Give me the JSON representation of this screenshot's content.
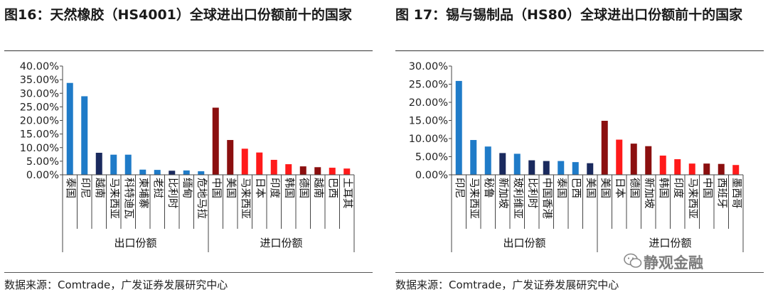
{
  "left": {
    "title": "图16：天然橡胶（HS4001）全球进出口份额前十的国家",
    "source": "数据来源：Comtrade，广发证券发展研究中心",
    "chart_data": {
      "type": "bar",
      "ylim": [
        0,
        40
      ],
      "yticks": [
        "0.00%",
        "5.00%",
        "10.00%",
        "15.00%",
        "20.00%",
        "25.00%",
        "30.00%",
        "35.00%",
        "40.00%"
      ],
      "groups": [
        {
          "label": "出口份额",
          "start": 0,
          "end": 10
        },
        {
          "label": "进口份额",
          "start": 10,
          "end": 20
        }
      ],
      "categories": [
        "泰国",
        "印尼",
        "越南",
        "马来西亚",
        "科特迪瓦",
        "柬埔寨",
        "老挝",
        "比利时",
        "缅甸",
        "危地马拉",
        "中国",
        "美国",
        "马来西亚",
        "日本",
        "印度",
        "韩国",
        "德国",
        "越南",
        "巴西",
        "土耳其"
      ],
      "values": [
        33.8,
        28.9,
        8.1,
        7.4,
        7.4,
        1.9,
        1.8,
        1.5,
        1.6,
        1.3,
        24.7,
        12.8,
        9.6,
        8.2,
        5.5,
        3.9,
        3.1,
        2.8,
        2.6,
        2.3
      ],
      "colors": [
        "#1f7bc8",
        "#1f7bc8",
        "#1a2a5e",
        "#1f7bc8",
        "#1f7bc8",
        "#1f7bc8",
        "#1f7bc8",
        "#1a2a5e",
        "#1f7bc8",
        "#1f7bc8",
        "#8b0f0f",
        "#8b0f0f",
        "#ff1a1a",
        "#ff1a1a",
        "#ff1a1a",
        "#ff1a1a",
        "#8b0f0f",
        "#8b0f0f",
        "#ff1a1a",
        "#ff1a1a"
      ]
    }
  },
  "right": {
    "title": "图 17：锡与锡制品（HS80）全球进出口份额前十的国家",
    "source": "数据来源：Comtrade，广发证券发展研究中心",
    "chart_data": {
      "type": "bar",
      "ylim": [
        0,
        30
      ],
      "yticks": [
        "0.00%",
        "5.00%",
        "10.00%",
        "15.00%",
        "20.00%",
        "25.00%",
        "30.00%"
      ],
      "groups": [
        {
          "label": "出口份额",
          "start": 0,
          "end": 10
        },
        {
          "label": "进口份额",
          "start": 10,
          "end": 20
        }
      ],
      "categories": [
        "印尼",
        "马来西亚",
        "秘鲁",
        "新加坡",
        "玻利维亚",
        "比利时",
        "中国香港",
        "泰国",
        "巴西",
        "美国",
        "美国",
        "日本",
        "德国",
        "新加坡",
        "韩国",
        "印度",
        "马来西亚",
        "中国",
        "西班牙",
        "墨西哥"
      ],
      "values": [
        25.9,
        9.6,
        7.8,
        6.0,
        5.8,
        4.0,
        3.8,
        3.8,
        3.5,
        3.2,
        14.9,
        9.7,
        8.6,
        7.9,
        5.3,
        4.3,
        3.1,
        3.1,
        3.0,
        2.7
      ],
      "colors": [
        "#1f7bc8",
        "#1f7bc8",
        "#1f7bc8",
        "#1a2a5e",
        "#1f7bc8",
        "#1a2a5e",
        "#1a2a5e",
        "#1f7bc8",
        "#1f7bc8",
        "#1a2a5e",
        "#8b0f0f",
        "#ff1a1a",
        "#8b0f0f",
        "#8b0f0f",
        "#ff1a1a",
        "#ff1a1a",
        "#ff1a1a",
        "#8b0f0f",
        "#8b0f0f",
        "#ff1a1a"
      ]
    }
  },
  "watermark": "静观金融"
}
